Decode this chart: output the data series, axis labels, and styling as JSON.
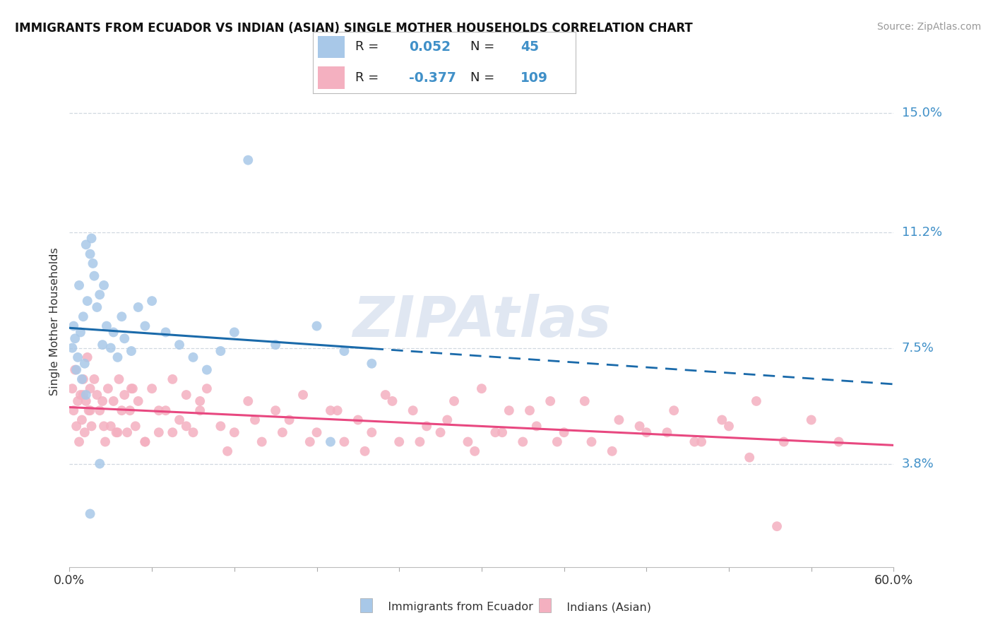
{
  "title": "IMMIGRANTS FROM ECUADOR VS INDIAN (ASIAN) SINGLE MOTHER HOUSEHOLDS CORRELATION CHART",
  "source": "Source: ZipAtlas.com",
  "ylabel": "Single Mother Households",
  "yticks": [
    0.038,
    0.075,
    0.112,
    0.15
  ],
  "ytick_labels": [
    "3.8%",
    "7.5%",
    "11.2%",
    "15.0%"
  ],
  "xmin": 0.0,
  "xmax": 0.6,
  "ymin": 0.005,
  "ymax": 0.162,
  "r1": "0.052",
  "n1": "45",
  "r2": "-0.377",
  "n2": "109",
  "color_blue_dot": "#a8c8e8",
  "color_pink_dot": "#f4b0c0",
  "color_blue_line": "#1a6aaa",
  "color_pink_line": "#e84880",
  "color_blue_text": "#4090c8",
  "color_pink_text": "#e84880",
  "color_grid": "#d0d8e0",
  "watermark": "ZIPAtlas",
  "watermark_color": "#c8d4e8",
  "label1": "Immigrants from Ecuador",
  "label2": "Indians (Asian)",
  "ecuador_x": [
    0.002,
    0.003,
    0.004,
    0.005,
    0.006,
    0.007,
    0.008,
    0.009,
    0.01,
    0.011,
    0.012,
    0.013,
    0.015,
    0.016,
    0.017,
    0.018,
    0.02,
    0.022,
    0.024,
    0.025,
    0.027,
    0.03,
    0.032,
    0.035,
    0.038,
    0.04,
    0.045,
    0.05,
    0.055,
    0.06,
    0.07,
    0.08,
    0.09,
    0.1,
    0.11,
    0.12,
    0.15,
    0.18,
    0.2,
    0.22,
    0.012,
    0.015,
    0.022,
    0.13,
    0.19
  ],
  "ecuador_y": [
    0.075,
    0.082,
    0.078,
    0.068,
    0.072,
    0.095,
    0.08,
    0.065,
    0.085,
    0.07,
    0.108,
    0.09,
    0.105,
    0.11,
    0.102,
    0.098,
    0.088,
    0.092,
    0.076,
    0.095,
    0.082,
    0.075,
    0.08,
    0.072,
    0.085,
    0.078,
    0.074,
    0.088,
    0.082,
    0.09,
    0.08,
    0.076,
    0.072,
    0.068,
    0.074,
    0.08,
    0.076,
    0.082,
    0.074,
    0.07,
    0.06,
    0.022,
    0.038,
    0.135,
    0.045
  ],
  "indian_x": [
    0.002,
    0.003,
    0.004,
    0.005,
    0.006,
    0.007,
    0.008,
    0.009,
    0.01,
    0.011,
    0.012,
    0.013,
    0.014,
    0.015,
    0.016,
    0.018,
    0.02,
    0.022,
    0.024,
    0.026,
    0.028,
    0.03,
    0.032,
    0.034,
    0.036,
    0.038,
    0.04,
    0.042,
    0.044,
    0.046,
    0.048,
    0.05,
    0.055,
    0.06,
    0.065,
    0.07,
    0.075,
    0.08,
    0.085,
    0.09,
    0.095,
    0.1,
    0.11,
    0.12,
    0.13,
    0.14,
    0.15,
    0.16,
    0.17,
    0.18,
    0.19,
    0.2,
    0.21,
    0.22,
    0.23,
    0.24,
    0.25,
    0.26,
    0.27,
    0.28,
    0.29,
    0.3,
    0.31,
    0.32,
    0.33,
    0.34,
    0.35,
    0.36,
    0.38,
    0.4,
    0.42,
    0.44,
    0.46,
    0.48,
    0.5,
    0.52,
    0.54,
    0.56,
    0.01,
    0.015,
    0.025,
    0.035,
    0.045,
    0.055,
    0.065,
    0.075,
    0.085,
    0.095,
    0.115,
    0.135,
    0.155,
    0.175,
    0.195,
    0.215,
    0.235,
    0.255,
    0.275,
    0.295,
    0.315,
    0.335,
    0.355,
    0.375,
    0.395,
    0.415,
    0.435,
    0.455,
    0.475,
    0.495,
    0.515
  ],
  "indian_y": [
    0.062,
    0.055,
    0.068,
    0.05,
    0.058,
    0.045,
    0.06,
    0.052,
    0.065,
    0.048,
    0.058,
    0.072,
    0.055,
    0.062,
    0.05,
    0.065,
    0.06,
    0.055,
    0.058,
    0.045,
    0.062,
    0.05,
    0.058,
    0.048,
    0.065,
    0.055,
    0.06,
    0.048,
    0.055,
    0.062,
    0.05,
    0.058,
    0.045,
    0.062,
    0.048,
    0.055,
    0.065,
    0.052,
    0.06,
    0.048,
    0.055,
    0.062,
    0.05,
    0.048,
    0.058,
    0.045,
    0.055,
    0.052,
    0.06,
    0.048,
    0.055,
    0.045,
    0.052,
    0.048,
    0.06,
    0.045,
    0.055,
    0.05,
    0.048,
    0.058,
    0.045,
    0.062,
    0.048,
    0.055,
    0.045,
    0.05,
    0.058,
    0.048,
    0.045,
    0.052,
    0.048,
    0.055,
    0.045,
    0.05,
    0.058,
    0.045,
    0.052,
    0.045,
    0.06,
    0.055,
    0.05,
    0.048,
    0.062,
    0.045,
    0.055,
    0.048,
    0.05,
    0.058,
    0.042,
    0.052,
    0.048,
    0.045,
    0.055,
    0.042,
    0.058,
    0.045,
    0.052,
    0.042,
    0.048,
    0.055,
    0.045,
    0.058,
    0.042,
    0.05,
    0.048,
    0.045,
    0.052,
    0.04,
    0.018
  ]
}
